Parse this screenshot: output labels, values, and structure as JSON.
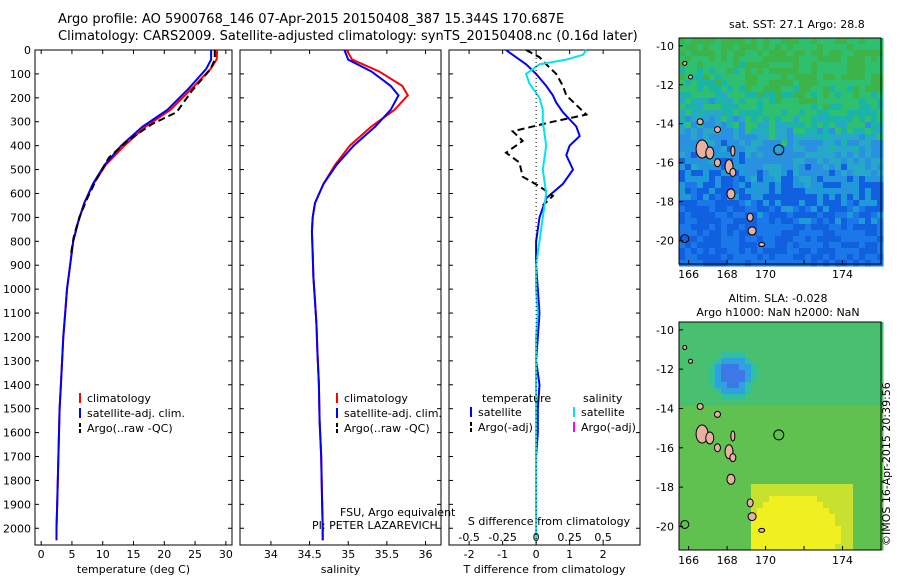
{
  "header": {
    "line1": "Argo profile: AO 5900768_146 07-Apr-2015 20150408_387 15.344S 170.687E",
    "line2": "Climatology: CARS2009. Satellite-adjusted climatology: synTS_20150408.nc (0.16d later)"
  },
  "credit": "©IMOS 16-Apr-2015 20:39:56",
  "colors": {
    "climatology": "#ff0000",
    "satellite": "#0000ff",
    "argo": "#000000",
    "salinity_satellite": "#00e5ee",
    "salinity_argo": "#ff00ff"
  },
  "chart_data": [
    {
      "type": "line",
      "id": "temperature",
      "xlabel": "temperature (deg C)",
      "xlim": [
        -1,
        31
      ],
      "xticks": [
        0,
        5,
        10,
        15,
        20,
        25,
        30
      ],
      "ylim": [
        2070,
        0
      ],
      "yticks": [
        0,
        100,
        200,
        300,
        400,
        500,
        600,
        700,
        800,
        900,
        1000,
        1100,
        1200,
        1300,
        1400,
        1500,
        1600,
        1700,
        1800,
        1900,
        2000
      ],
      "legend": [
        "climatology",
        "satellite-adj. clim.",
        "Argo(..raw -QC)"
      ],
      "series": [
        {
          "name": "climatology",
          "color": "#ff0000",
          "points": [
            [
              28.6,
              0
            ],
            [
              28.5,
              40
            ],
            [
              27.5,
              80
            ],
            [
              24.5,
              160
            ],
            [
              21,
              250
            ],
            [
              17,
              320
            ],
            [
              13.5,
              400
            ],
            [
              10.5,
              480
            ],
            [
              8.5,
              560
            ],
            [
              7,
              640
            ],
            [
              6,
              720
            ],
            [
              5.2,
              800
            ],
            [
              4.7,
              900
            ],
            [
              4.2,
              1000
            ],
            [
              3.9,
              1100
            ],
            [
              3.6,
              1200
            ],
            [
              3.4,
              1300
            ],
            [
              3.2,
              1400
            ],
            [
              3,
              1500
            ],
            [
              2.9,
              1600
            ],
            [
              2.8,
              1700
            ],
            [
              2.7,
              1800
            ],
            [
              2.6,
              1900
            ],
            [
              2.5,
              2000
            ],
            [
              2.5,
              2050
            ]
          ]
        },
        {
          "name": "satellite-adj. clim.",
          "color": "#0000ff",
          "points": [
            [
              27.6,
              0
            ],
            [
              27.6,
              40
            ],
            [
              26.8,
              80
            ],
            [
              24,
              160
            ],
            [
              20.5,
              250
            ],
            [
              16.5,
              320
            ],
            [
              13,
              400
            ],
            [
              10.3,
              480
            ],
            [
              8.4,
              560
            ],
            [
              7,
              640
            ],
            [
              6,
              720
            ],
            [
              5.2,
              800
            ],
            [
              4.7,
              900
            ],
            [
              4.2,
              1000
            ],
            [
              3.9,
              1100
            ],
            [
              3.6,
              1200
            ],
            [
              3.4,
              1300
            ],
            [
              3.2,
              1400
            ],
            [
              3,
              1500
            ],
            [
              2.9,
              1600
            ],
            [
              2.8,
              1700
            ],
            [
              2.7,
              1800
            ],
            [
              2.6,
              1900
            ],
            [
              2.5,
              2000
            ],
            [
              2.5,
              2050
            ]
          ]
        },
        {
          "name": "Argo(..raw -QC)",
          "color": "#000000",
          "dashed": true,
          "points": [
            [
              28.2,
              0
            ],
            [
              28.2,
              40
            ],
            [
              27.5,
              80
            ],
            [
              24.5,
              170
            ],
            [
              22,
              260
            ],
            [
              18,
              310
            ],
            [
              14,
              380
            ],
            [
              11,
              450
            ],
            [
              9,
              540
            ],
            [
              7.5,
              620
            ],
            [
              6.2,
              700
            ],
            [
              5.3,
              780
            ],
            [
              4.8,
              860
            ]
          ]
        }
      ]
    },
    {
      "type": "line",
      "id": "salinity",
      "xlabel": "salinity",
      "xlim": [
        33.6,
        36.2
      ],
      "xticks": [
        34,
        34.5,
        35,
        35.5,
        36
      ],
      "ylim": [
        2070,
        0
      ],
      "legend": [
        "climatology",
        "satellite-adj. clim.",
        "Argo(..raw -QC)"
      ],
      "annotations": [
        "FSU, Argo equivalent",
        "PI: PETER LAZAREVICH"
      ],
      "series": [
        {
          "name": "climatology",
          "color": "#ff0000",
          "points": [
            [
              34.98,
              0
            ],
            [
              35.05,
              40
            ],
            [
              35.4,
              90
            ],
            [
              35.7,
              150
            ],
            [
              35.77,
              190
            ],
            [
              35.6,
              250
            ],
            [
              35.3,
              320
            ],
            [
              35.02,
              400
            ],
            [
              34.83,
              480
            ],
            [
              34.68,
              560
            ],
            [
              34.57,
              640
            ],
            [
              34.54,
              700
            ],
            [
              34.53,
              760
            ],
            [
              34.54,
              850
            ],
            [
              34.55,
              950
            ],
            [
              34.57,
              1050
            ],
            [
              34.59,
              1150
            ],
            [
              34.6,
              1250
            ],
            [
              34.62,
              1400
            ],
            [
              34.63,
              1550
            ],
            [
              34.65,
              1700
            ],
            [
              34.66,
              1850
            ],
            [
              34.67,
              2000
            ],
            [
              34.67,
              2050
            ]
          ]
        },
        {
          "name": "satellite-adj. clim.",
          "color": "#0000ff",
          "points": [
            [
              34.95,
              0
            ],
            [
              35.0,
              40
            ],
            [
              35.3,
              90
            ],
            [
              35.55,
              150
            ],
            [
              35.65,
              190
            ],
            [
              35.55,
              250
            ],
            [
              35.35,
              320
            ],
            [
              35.07,
              400
            ],
            [
              34.85,
              480
            ],
            [
              34.68,
              560
            ],
            [
              34.57,
              640
            ],
            [
              34.54,
              700
            ],
            [
              34.53,
              760
            ],
            [
              34.54,
              850
            ],
            [
              34.55,
              950
            ],
            [
              34.57,
              1050
            ],
            [
              34.59,
              1150
            ],
            [
              34.6,
              1250
            ],
            [
              34.62,
              1400
            ],
            [
              34.63,
              1550
            ],
            [
              34.65,
              1700
            ],
            [
              34.66,
              1850
            ],
            [
              34.67,
              2000
            ],
            [
              34.67,
              2050
            ]
          ]
        }
      ]
    },
    {
      "type": "line",
      "id": "difference",
      "xlabel": "T difference from climatology",
      "xlabel_top": "S difference from climatology",
      "xlim": [
        -2.6,
        3.1
      ],
      "xticks": [
        -2,
        -1,
        0,
        1,
        2
      ],
      "xticks_top": [
        -0.5,
        -0.25,
        0,
        0.25,
        0.5
      ],
      "ylim": [
        2070,
        0
      ],
      "legend_headers": [
        "temperature",
        "salinity"
      ],
      "legend": [
        "satellite",
        "Argo(-adj)",
        "satellite",
        "Argo(-adj)"
      ],
      "series": [
        {
          "name": "T satellite",
          "color": "#0000ff",
          "points": [
            [
              -0.9,
              0
            ],
            [
              -0.6,
              30
            ],
            [
              -0.3,
              60
            ],
            [
              0,
              100
            ],
            [
              0.3,
              150
            ],
            [
              0.5,
              190
            ],
            [
              0.6,
              220
            ],
            [
              0.8,
              260
            ],
            [
              1.2,
              320
            ],
            [
              1.3,
              360
            ],
            [
              1.0,
              400
            ],
            [
              0.9,
              440
            ],
            [
              1.1,
              500
            ],
            [
              0.8,
              560
            ],
            [
              0.3,
              620
            ],
            [
              0.1,
              700
            ],
            [
              0,
              800
            ],
            [
              0,
              900
            ],
            [
              0.05,
              1000
            ],
            [
              0.1,
              1100
            ],
            [
              0.05,
              1200
            ],
            [
              0,
              1300
            ],
            [
              0.1,
              1400
            ],
            [
              0.05,
              1500
            ],
            [
              0.05,
              1600
            ],
            [
              0,
              1700
            ]
          ]
        },
        {
          "name": "T Argo(-adj)",
          "color": "#000000",
          "dashed": true,
          "points": [
            [
              -0.3,
              0
            ],
            [
              0.1,
              30
            ],
            [
              0.3,
              60
            ],
            [
              0.6,
              100
            ],
            [
              0.8,
              150
            ],
            [
              0.9,
              190
            ],
            [
              1.2,
              230
            ],
            [
              1.5,
              270
            ],
            [
              0.5,
              300
            ],
            [
              -0.7,
              340
            ],
            [
              -0.4,
              380
            ],
            [
              -0.9,
              430
            ],
            [
              -0.5,
              470
            ],
            [
              -0.4,
              530
            ],
            [
              0.1,
              570
            ],
            [
              0.5,
              610
            ],
            [
              0.2,
              650
            ]
          ]
        },
        {
          "name": "S satellite",
          "color": "#00e5ee",
          "points": [
            [
              1.5,
              0
            ],
            [
              1.4,
              20
            ],
            [
              0.9,
              40
            ],
            [
              0.1,
              60
            ],
            [
              -0.3,
              100
            ],
            [
              -0.2,
              140
            ],
            [
              0.1,
              200
            ],
            [
              0.2,
              250
            ],
            [
              0.2,
              300
            ],
            [
              0.3,
              400
            ],
            [
              0.2,
              500
            ],
            [
              0.3,
              600
            ],
            [
              0.2,
              700
            ],
            [
              0.1,
              800
            ],
            [
              0,
              900
            ],
            [
              0,
              1000
            ],
            [
              0.05,
              1100
            ],
            [
              0,
              1200
            ],
            [
              0,
              1300
            ],
            [
              0,
              1400
            ],
            [
              0,
              1500
            ],
            [
              0,
              1600
            ],
            [
              0,
              1700
            ],
            [
              0,
              1800
            ],
            [
              0,
              1900
            ],
            [
              0,
              2000
            ],
            [
              0,
              2050
            ]
          ]
        }
      ]
    },
    {
      "type": "heatmap",
      "id": "sst_map",
      "title": "sat. SST: 27.1 Argo: 28.8",
      "xticks": [
        166,
        168,
        170,
        172,
        174
      ],
      "xtick_labels": [
        "166",
        "168",
        "170",
        "",
        "174"
      ],
      "yticks": [
        -10,
        -12,
        -14,
        -16,
        -18,
        -20
      ],
      "xlim": [
        165.5,
        176
      ],
      "ylim": [
        -21.2,
        -9.6
      ],
      "argo_position": [
        170.687,
        -15.344
      ]
    },
    {
      "type": "heatmap",
      "id": "sla_map",
      "title": "Altim. SLA: -0.028",
      "subtitle": "Argo h1000: NaN h2000: NaN",
      "xticks": [
        166,
        168,
        170,
        172,
        174
      ],
      "xtick_labels": [
        "166",
        "168",
        "170",
        "",
        "174"
      ],
      "yticks": [
        -10,
        -12,
        -14,
        -16,
        -18,
        -20
      ],
      "xlim": [
        165.5,
        176
      ],
      "ylim": [
        -21.2,
        -9.6
      ],
      "argo_position": [
        170.687,
        -15.344
      ]
    }
  ]
}
